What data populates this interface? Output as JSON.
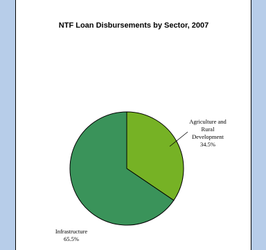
{
  "chart_data": {
    "type": "pie",
    "title": "NTF Loan Disbursements by  Sector, 2007",
    "slices": [
      {
        "label_lines": [
          "Agriculture and",
          "Rural",
          "Development"
        ],
        "value_label": "34.5%",
        "value": 34.5,
        "color": "#76b225"
      },
      {
        "label_lines": [
          "Infrastructure"
        ],
        "value_label": "65.5%",
        "value": 65.5,
        "color": "#3a935a"
      }
    ],
    "start_angle_deg": 0,
    "direction": "clockwise",
    "legend": "none"
  }
}
